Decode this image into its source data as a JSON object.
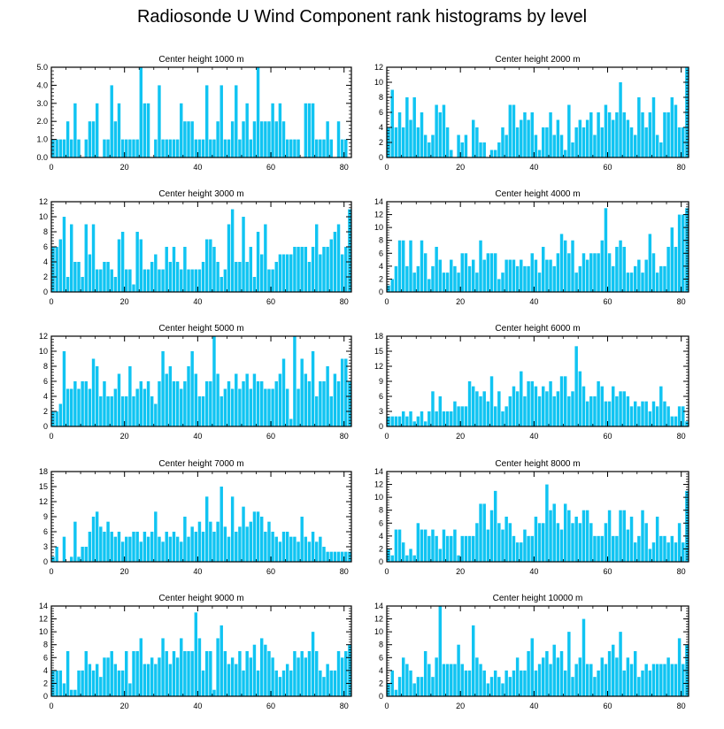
{
  "figure": {
    "title": "Radiosonde U Wind Component rank histograms by level"
  },
  "colors": {
    "bar": "#10c4f2",
    "axis": "#000000"
  },
  "chart_data": [
    {
      "type": "bar",
      "title": "Center height 1000 m",
      "xticks": [
        0,
        20,
        40,
        60,
        80
      ],
      "yticks": [
        0.0,
        1.0,
        2.0,
        3.0,
        4.0,
        5.0
      ],
      "ytick_labels": [
        "0.0",
        "1.0",
        "2.0",
        "3.0",
        "4.0",
        "5.0"
      ],
      "xlim": [
        0,
        82
      ],
      "ylim": [
        0,
        5
      ],
      "values": [
        1,
        1,
        1,
        1,
        2,
        1,
        3,
        1,
        0,
        1,
        2,
        2,
        3,
        0,
        1,
        1,
        4,
        2,
        3,
        1,
        1,
        1,
        1,
        1,
        5,
        3,
        3,
        0,
        1,
        4,
        1,
        1,
        1,
        1,
        1,
        3,
        2,
        2,
        2,
        1,
        1,
        1,
        4,
        1,
        1,
        2,
        4,
        1,
        1,
        2,
        4,
        1,
        2,
        3,
        1,
        2,
        5,
        2,
        2,
        2,
        3,
        2,
        3,
        2,
        1,
        1,
        1,
        1,
        0,
        3,
        3,
        3,
        1,
        1,
        1,
        2,
        1,
        0,
        2,
        1,
        1
      ]
    },
    {
      "type": "bar",
      "title": "Center height 2000 m",
      "xticks": [
        0,
        20,
        40,
        60,
        80
      ],
      "yticks": [
        0,
        2,
        4,
        6,
        8,
        10,
        12
      ],
      "ytick_labels": [
        "0",
        "2",
        "4",
        "6",
        "8",
        "10",
        "12"
      ],
      "xlim": [
        0,
        82
      ],
      "ylim": [
        0,
        12
      ],
      "values": [
        4,
        9,
        4,
        6,
        4,
        8,
        5,
        8,
        4,
        6,
        3,
        2,
        3,
        7,
        6,
        7,
        4,
        1,
        0,
        3,
        2,
        3,
        0,
        5,
        4,
        2,
        2,
        0,
        1,
        1,
        2,
        4,
        3,
        7,
        7,
        4,
        5,
        6,
        5,
        6,
        3,
        1,
        4,
        4,
        6,
        3,
        5,
        3,
        1,
        7,
        2,
        4,
        5,
        4,
        5,
        6,
        3,
        6,
        4,
        7,
        6,
        5,
        6,
        10,
        6,
        5,
        4,
        3,
        8,
        6,
        4,
        6,
        8,
        3,
        2,
        6,
        6,
        8,
        7,
        4,
        4,
        12
      ]
    },
    {
      "type": "bar",
      "title": "Center height 3000 m",
      "xticks": [
        0,
        20,
        40,
        60,
        80
      ],
      "yticks": [
        0,
        2,
        4,
        6,
        8,
        10,
        12
      ],
      "ytick_labels": [
        "0",
        "2",
        "4",
        "6",
        "8",
        "10",
        "12"
      ],
      "xlim": [
        0,
        82
      ],
      "ylim": [
        0,
        12
      ],
      "values": [
        6,
        6,
        7,
        10,
        2,
        9,
        4,
        4,
        2,
        9,
        5,
        9,
        3,
        3,
        4,
        4,
        3,
        2,
        7,
        8,
        3,
        3,
        1,
        8,
        7,
        3,
        3,
        4,
        5,
        3,
        3,
        6,
        4,
        6,
        4,
        3,
        6,
        3,
        3,
        3,
        3,
        4,
        7,
        7,
        6,
        4,
        2,
        3,
        9,
        11,
        4,
        4,
        10,
        4,
        6,
        2,
        8,
        5,
        9,
        3,
        3,
        4,
        5,
        5,
        5,
        5,
        6,
        6,
        6,
        6,
        4,
        6,
        9,
        5,
        6,
        6,
        7,
        8,
        9,
        5,
        6,
        11
      ]
    },
    {
      "type": "bar",
      "title": "Center height 4000 m",
      "xticks": [
        0,
        20,
        40,
        60,
        80
      ],
      "yticks": [
        0,
        2,
        4,
        6,
        8,
        10,
        12,
        14
      ],
      "ytick_labels": [
        "0",
        "2",
        "4",
        "6",
        "8",
        "10",
        "12",
        "14"
      ],
      "xlim": [
        0,
        82
      ],
      "ylim": [
        0,
        14
      ],
      "values": [
        1,
        2,
        4,
        8,
        8,
        4,
        8,
        3,
        4,
        8,
        6,
        2,
        4,
        7,
        5,
        3,
        3,
        5,
        4,
        3,
        6,
        6,
        4,
        5,
        3,
        8,
        5,
        6,
        6,
        6,
        2,
        3,
        5,
        5,
        5,
        4,
        5,
        4,
        4,
        6,
        5,
        3,
        7,
        5,
        5,
        4,
        6,
        9,
        8,
        6,
        8,
        3,
        4,
        6,
        5,
        6,
        6,
        6,
        8,
        13,
        6,
        4,
        7,
        8,
        7,
        3,
        3,
        4,
        5,
        3,
        5,
        9,
        6,
        3,
        4,
        4,
        7,
        10,
        7,
        12,
        12,
        13
      ]
    },
    {
      "type": "bar",
      "title": "Center height 5000 m",
      "xticks": [
        0,
        20,
        40,
        60,
        80
      ],
      "yticks": [
        0,
        2,
        4,
        6,
        8,
        10,
        12
      ],
      "ytick_labels": [
        "0",
        "2",
        "4",
        "6",
        "8",
        "10",
        "12"
      ],
      "xlim": [
        0,
        82
      ],
      "ylim": [
        0,
        12
      ],
      "values": [
        2,
        2,
        3,
        10,
        5,
        5,
        6,
        5,
        6,
        6,
        5,
        9,
        8,
        4,
        6,
        4,
        4,
        5,
        7,
        4,
        4,
        8,
        4,
        5,
        6,
        5,
        6,
        4,
        3,
        6,
        10,
        7,
        8,
        6,
        6,
        5,
        6,
        8,
        10,
        7,
        4,
        4,
        6,
        6,
        12,
        7,
        4,
        5,
        6,
        5,
        7,
        5,
        6,
        7,
        5,
        7,
        6,
        6,
        5,
        5,
        5,
        6,
        7,
        9,
        5,
        1,
        12,
        5,
        9,
        7,
        6,
        10,
        4,
        6,
        6,
        8,
        4,
        7,
        6,
        9,
        9,
        6
      ]
    },
    {
      "type": "bar",
      "title": "Center height 6000 m",
      "xticks": [
        0,
        20,
        40,
        60,
        80
      ],
      "yticks": [
        0,
        3,
        6,
        9,
        12,
        15,
        18
      ],
      "ytick_labels": [
        "0",
        "3",
        "6",
        "9",
        "12",
        "15",
        "18"
      ],
      "xlim": [
        0,
        82
      ],
      "ylim": [
        0,
        18
      ],
      "values": [
        2,
        2,
        2,
        2,
        3,
        2,
        3,
        1,
        2,
        3,
        1,
        3,
        7,
        3,
        6,
        3,
        3,
        3,
        5,
        4,
        4,
        4,
        9,
        8,
        7,
        6,
        7,
        5,
        10,
        4,
        7,
        3,
        4,
        6,
        8,
        7,
        11,
        6,
        9,
        9,
        8,
        6,
        8,
        7,
        9,
        6,
        7,
        10,
        10,
        6,
        7,
        16,
        11,
        8,
        5,
        6,
        6,
        9,
        8,
        5,
        5,
        8,
        6,
        7,
        7,
        6,
        4,
        5,
        4,
        5,
        5,
        3,
        5,
        4,
        8,
        5,
        4,
        2,
        2,
        4,
        4,
        1
      ]
    },
    {
      "type": "bar",
      "title": "Center height 7000 m",
      "xticks": [
        0,
        20,
        40,
        60,
        80
      ],
      "yticks": [
        0,
        3,
        6,
        9,
        12,
        15,
        18
      ],
      "ytick_labels": [
        "0",
        "3",
        "6",
        "9",
        "12",
        "15",
        "18"
      ],
      "xlim": [
        0,
        82
      ],
      "ylim": [
        0,
        18
      ],
      "values": [
        1,
        3,
        0,
        5,
        0,
        1,
        8,
        1,
        3,
        3,
        6,
        9,
        10,
        7,
        6,
        8,
        6,
        5,
        6,
        4,
        5,
        5,
        6,
        6,
        4,
        6,
        5,
        6,
        10,
        5,
        4,
        6,
        5,
        6,
        5,
        4,
        9,
        5,
        7,
        6,
        8,
        6,
        13,
        8,
        6,
        8,
        15,
        7,
        5,
        13,
        6,
        7,
        11,
        7,
        8,
        10,
        10,
        9,
        6,
        8,
        6,
        5,
        4,
        6,
        6,
        5,
        5,
        4,
        9,
        5,
        4,
        6,
        4,
        5,
        3,
        2,
        2,
        2,
        2,
        2,
        2,
        2
      ]
    },
    {
      "type": "bar",
      "title": "Center height 8000 m",
      "xticks": [
        0,
        20,
        40,
        60,
        80
      ],
      "yticks": [
        0,
        2,
        4,
        6,
        8,
        10,
        12,
        14
      ],
      "ytick_labels": [
        "0",
        "2",
        "4",
        "6",
        "8",
        "10",
        "12",
        "14"
      ],
      "xlim": [
        0,
        82
      ],
      "ylim": [
        0,
        14
      ],
      "values": [
        2,
        1,
        5,
        5,
        3,
        1,
        2,
        1,
        6,
        5,
        5,
        4,
        5,
        4,
        2,
        5,
        4,
        4,
        5,
        1,
        4,
        4,
        4,
        4,
        6,
        9,
        9,
        5,
        8,
        11,
        6,
        5,
        7,
        6,
        4,
        3,
        3,
        5,
        4,
        4,
        7,
        6,
        6,
        12,
        8,
        9,
        6,
        5,
        9,
        8,
        6,
        7,
        6,
        8,
        8,
        6,
        4,
        4,
        4,
        6,
        8,
        4,
        4,
        8,
        8,
        5,
        7,
        3,
        4,
        8,
        6,
        2,
        3,
        7,
        4,
        4,
        3,
        4,
        3,
        6,
        3,
        11
      ]
    },
    {
      "type": "bar",
      "title": "Center height 9000 m",
      "xticks": [
        0,
        20,
        40,
        60,
        80
      ],
      "yticks": [
        0,
        2,
        4,
        6,
        8,
        10,
        12,
        14
      ],
      "ytick_labels": [
        "0",
        "2",
        "4",
        "6",
        "8",
        "10",
        "12",
        "14"
      ],
      "xlim": [
        0,
        82
      ],
      "ylim": [
        0,
        14
      ],
      "values": [
        4,
        4,
        4,
        2,
        7,
        1,
        1,
        4,
        4,
        7,
        5,
        4,
        5,
        3,
        6,
        6,
        7,
        5,
        4,
        4,
        7,
        2,
        7,
        7,
        9,
        5,
        5,
        6,
        5,
        6,
        9,
        7,
        5,
        7,
        6,
        9,
        7,
        7,
        7,
        13,
        9,
        4,
        7,
        7,
        1,
        9,
        11,
        7,
        5,
        6,
        5,
        7,
        4,
        7,
        6,
        8,
        4,
        9,
        8,
        7,
        6,
        4,
        3,
        4,
        5,
        4,
        7,
        6,
        7,
        6,
        7,
        10,
        7,
        4,
        3,
        5,
        4,
        4,
        7,
        6,
        7,
        8
      ]
    },
    {
      "type": "bar",
      "title": "Center height 10000 m",
      "xticks": [
        0,
        20,
        40,
        60,
        80
      ],
      "yticks": [
        0,
        2,
        4,
        6,
        8,
        10,
        12,
        14
      ],
      "ytick_labels": [
        "0",
        "2",
        "4",
        "6",
        "8",
        "10",
        "12",
        "14"
      ],
      "xlim": [
        0,
        82
      ],
      "ylim": [
        0,
        14
      ],
      "values": [
        2,
        4,
        1,
        3,
        6,
        5,
        4,
        2,
        3,
        3,
        7,
        5,
        3,
        6,
        14,
        5,
        5,
        5,
        5,
        8,
        5,
        4,
        4,
        11,
        6,
        5,
        4,
        2,
        3,
        4,
        3,
        2,
        4,
        3,
        4,
        6,
        4,
        4,
        7,
        9,
        4,
        5,
        6,
        7,
        5,
        8,
        6,
        7,
        4,
        10,
        3,
        5,
        6,
        12,
        5,
        5,
        3,
        4,
        6,
        5,
        7,
        8,
        6,
        10,
        4,
        6,
        5,
        7,
        3,
        4,
        5,
        4,
        5,
        5,
        5,
        5,
        6,
        5,
        5,
        9,
        5,
        8
      ]
    }
  ]
}
